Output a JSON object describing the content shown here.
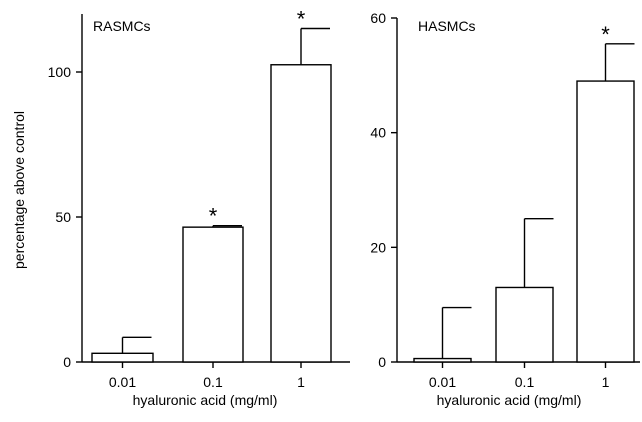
{
  "chart_data": [
    {
      "type": "bar",
      "title": "RASMCs",
      "ylabel": "percentage above control",
      "xlabel": "hyaluronic acid (mg/ml)",
      "categories": [
        "0.01",
        "0.1",
        "1"
      ],
      "values": [
        3,
        46.5,
        102.5
      ],
      "errors": [
        5.5,
        0.5,
        12.5
      ],
      "significant": [
        "",
        "*",
        "*"
      ],
      "ylim": [
        0,
        120
      ],
      "yticks": [
        0,
        50,
        100
      ]
    },
    {
      "type": "bar",
      "title": "HASMCs",
      "ylabel": "",
      "xlabel": "hyaluronic acid (mg/ml)",
      "categories": [
        "0.01",
        "0.1",
        "1"
      ],
      "values": [
        0.6,
        13,
        49
      ],
      "errors": [
        8.9,
        12,
        6.5
      ],
      "significant": [
        "",
        "",
        "*"
      ],
      "ylim": [
        0,
        60
      ],
      "yticks": [
        0,
        20,
        40,
        60
      ]
    }
  ]
}
